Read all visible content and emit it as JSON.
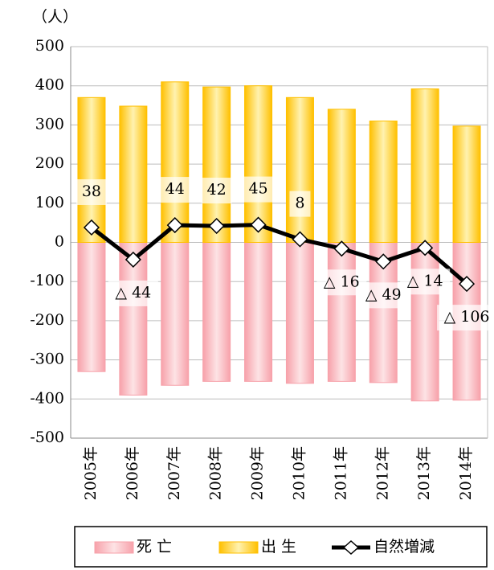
{
  "chart_data": {
    "type": "bar",
    "y_label": "（人）",
    "categories": [
      "2005年",
      "2006年",
      "2007年",
      "2008年",
      "2009年",
      "2010年",
      "2011年",
      "2012年",
      "2013年",
      "2014年"
    ],
    "series": [
      {
        "name": "死 亡",
        "color": "#f7a1aa",
        "values": [
          -330,
          -390,
          -365,
          -355,
          -355,
          -360,
          -355,
          -358,
          -405,
          -403
        ]
      },
      {
        "name": "出 生",
        "color": "#ffc000",
        "values": [
          370,
          348,
          410,
          397,
          400,
          370,
          340,
          310,
          392,
          297
        ]
      },
      {
        "name": "自然増減",
        "type": "line",
        "color": "#000000",
        "values": [
          38,
          -44,
          44,
          42,
          45,
          8,
          -16,
          -49,
          -14,
          -106
        ],
        "value_labels": [
          "38",
          "△ 44",
          "44",
          "42",
          "45",
          "8",
          "△ 16",
          "△ 49",
          "△ 14",
          "△ 106"
        ]
      }
    ],
    "ylim": [
      -500,
      500
    ],
    "yticks": [
      -500,
      -400,
      -300,
      -200,
      -100,
      0,
      100,
      200,
      300,
      400,
      500
    ],
    "grid": true,
    "legend": "bottom"
  }
}
